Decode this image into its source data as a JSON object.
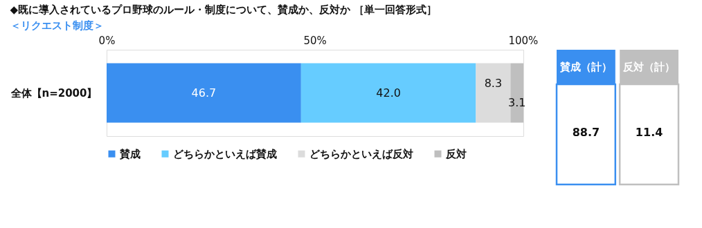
{
  "chart_data": [
    {
      "type": "bar",
      "title": "◆既に導入されているプロ野球のルール・制度について、賛成か、反対か ［単一回答形式］",
      "subtitle": "＜リクエスト制度＞",
      "orientation": "horizontal",
      "stacked": true,
      "legend": "bottom",
      "categories": [
        "全体【n=2000】"
      ],
      "xlim": [
        0,
        100.1
      ],
      "xticks": [
        {
          "value": 0,
          "label": "0%"
        },
        {
          "value": 50,
          "label": "50%"
        },
        {
          "value": 100,
          "label": "100%"
        }
      ],
      "series": [
        {
          "name": "賛成",
          "color": "#3a8ff0",
          "values": [
            46.7
          ],
          "value_labels": [
            "46.7"
          ]
        },
        {
          "name": "どちらかといえば賛成",
          "color": "#66ccff",
          "values": [
            42.0
          ],
          "value_labels": [
            "42.0"
          ]
        },
        {
          "name": "どちらかといえば反対",
          "color": "#dcdcdc",
          "values": [
            8.3
          ],
          "value_labels": [
            "8.3"
          ]
        },
        {
          "name": "反対",
          "color": "#bfbfbf",
          "values": [
            3.1
          ],
          "value_labels": [
            "3.1"
          ]
        }
      ]
    },
    {
      "type": "other",
      "categories": [
        "賛成（計）",
        "反対（計）"
      ],
      "values": [
        88.7,
        11.4
      ],
      "colors": [
        "#3a8ff0",
        "#bfbfbf"
      ],
      "data_labels": true
    }
  ]
}
